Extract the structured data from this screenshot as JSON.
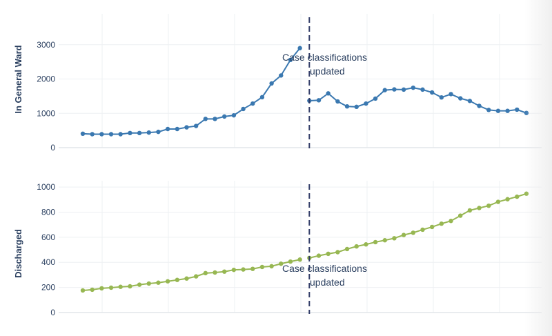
{
  "chart_data": [
    {
      "type": "line",
      "ylabel": "In General Ward",
      "ylim": [
        0,
        3900
      ],
      "yticks": [
        0,
        1000,
        2000,
        3000
      ],
      "grid": true,
      "color": "#3a78b0",
      "x": [
        0,
        1,
        2,
        3,
        4,
        5,
        6,
        7,
        8,
        9,
        10,
        11,
        12,
        13,
        14,
        15,
        16,
        17,
        18,
        19,
        20,
        21,
        22,
        23,
        24,
        25,
        26,
        27,
        28,
        29,
        30,
        31,
        32,
        33,
        34,
        35,
        36,
        37,
        38,
        39,
        40,
        41,
        42,
        43,
        44,
        45,
        46,
        47
      ],
      "segments": [
        {
          "x_start": 0,
          "values": [
            406,
            392,
            392,
            392,
            392,
            426,
            426,
            440,
            460,
            543,
            543,
            592,
            632,
            838,
            838,
            907,
            942,
            1127,
            1285,
            1470,
            1870,
            2103,
            2557,
            2900
          ]
        },
        {
          "x_start": 24,
          "values": [
            1367,
            1381,
            1581,
            1346,
            1202,
            1189,
            1285,
            1429,
            1676,
            1697,
            1691,
            1746,
            1691,
            1608,
            1464,
            1560,
            1437,
            1361,
            1216,
            1099,
            1072,
            1072,
            1107,
            1010
          ]
        }
      ],
      "annotation": {
        "x": 24,
        "lines": [
          "Case classifications",
          "updated"
        ]
      }
    },
    {
      "type": "line",
      "ylabel": "Discharged",
      "ylim": [
        0,
        1050
      ],
      "yticks": [
        0,
        200,
        400,
        600,
        800,
        1000
      ],
      "grid": true,
      "color": "#97b752",
      "segments": [
        {
          "x_start": 0,
          "values": [
            176,
            182,
            193,
            198,
            205,
            209,
            222,
            231,
            238,
            249,
            260,
            271,
            288,
            314,
            319,
            326,
            340,
            343,
            348,
            363,
            369,
            389,
            406,
            422
          ]
        },
        {
          "x_start": 24,
          "values": [
            435,
            453,
            468,
            481,
            506,
            527,
            543,
            561,
            576,
            592,
            618,
            636,
            660,
            682,
            708,
            730,
            772,
            814,
            833,
            851,
            882,
            903,
            923,
            947
          ]
        }
      ],
      "annotation": {
        "x": 24,
        "lines": [
          "Case classifications",
          "updated"
        ]
      }
    }
  ]
}
